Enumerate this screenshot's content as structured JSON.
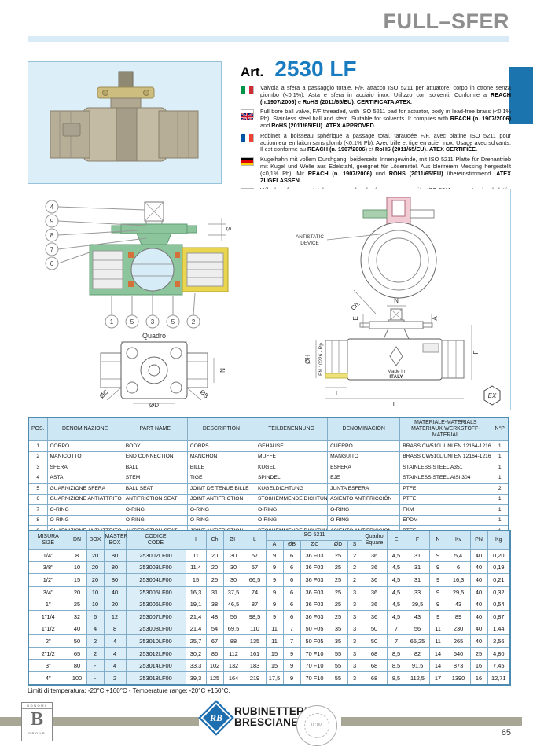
{
  "header": {
    "title": "FULL–SFER"
  },
  "product": {
    "art_label": "Art.",
    "art_number": "2530 LF",
    "descriptions": [
      {
        "lang": "italian-flag",
        "text": "Valvola a sfera a passaggio totale, F/F, attacco ISO 5211 per attuatore, corpo in ottone senza piombo (<0,1%). Asta e sfera in acciaio inox. Utilizzo con solventi. Conforme a REACH (n.1907/2006) e RoHS (2011/65/EU). CERTIFICATA ATEX."
      },
      {
        "lang": "uk-flag",
        "text": "Full bore ball valve, F/F threaded, with ISO 5211 pad for actuator, body in lead-free brass (<0,1% Pb). Stainless steel ball and stem. Suitable for solvents. It complies with REACH (n. 1907/2006) and RoHS (2011/65/EU). ATEX APPROVED."
      },
      {
        "lang": "french-flag",
        "text": "Robinet à boisseau sphérique à passage total, taraudée F/F, avec platine ISO 5211 pour actionneur en laiton sans plomb (<0,1% Pb). Avec bille et tige en acier inox. Usage avec solvants. Il est conforme au REACH (n. 1907/2006) et RoHS (2011/65/EU). ATEX CERTIFIÉE."
      },
      {
        "lang": "german-flag",
        "text": "Kugelhahn mit vollem Durchgang, beiderseits Innengewinde, mit ISO 5211 Platte für Drehantrieb mit Kugel und Welle aus Edelstahl, geeignet für Lösemittel. Aus bleifreiem Messing hergestellt (<0,1% Pb). Mit REACH (n. 1907/2006) und ROHS (2011/65/EU) übereinstimmend. ATEX ZUGELASSEN."
      },
      {
        "lang": "spanish-flag",
        "text": "Válvula esfera paso total con roscas hembra/hembra y conexión ISO 5211 para actuador de latón sin plomo (<0,1% Pb). Con eje y esfera en acero inoxidable. Utilización con solventes. Conforme a REACH (n. 1907/2006) e RoHS (2011/65/EU). CERTIFICADA ATEX."
      }
    ]
  },
  "bold_phrases": [
    "REACH (n.1907/2006)",
    "REACH (n. 1907/2006)",
    "RoHS (2011/65/EU)",
    "ROHS (2011/65/EU)",
    "CERTIFICATA ATEX.",
    "ATEX APPROVED.",
    "ATEX CERTIFIÉE.",
    "ATEX ZUGELASSEN.",
    "CERTIFICADA ATEX."
  ],
  "diagram": {
    "callouts_left": [
      "4",
      "9",
      "8",
      "7",
      "6"
    ],
    "callouts_bottom": [
      "1",
      "5",
      "3",
      "5",
      "2"
    ],
    "quadro_label": "Quadro",
    "antistatic_1": "ANTISTATIC",
    "antistatic_2": "DEVICE",
    "made_in_1": "Made in",
    "made_in_2": "ITALY",
    "ex_label": "EX",
    "dims": {
      "s": "S",
      "n": "N",
      "oc": "ØC",
      "od": "ØD",
      "ob": "ØB",
      "ch": "Ch.",
      "e": "E",
      "a": "A",
      "f": "F",
      "oh": "ØH",
      "en": "EN 10226 - Rp",
      "i": "I",
      "l": "L"
    }
  },
  "parts_table": {
    "headers": {
      "pos": "POS.",
      "denominazione": "DENOMINAZIONE",
      "part_name": "PART NAME",
      "description": "DESCRIPTION",
      "teilbenennung": "TEILBENENNUNG",
      "denominacion": "DENOMINACIÓN",
      "materiale_line1": "MATERIALE-MATERIALS",
      "materiale_line2": "MATERIAUX-WERKSTOFF-MATERIAL",
      "np": "N°P"
    },
    "rows": [
      [
        "1",
        "CORPO",
        "BODY",
        "CORPS",
        "GEHÄUSE",
        "CUERPO",
        "BRASS CW510L UNI EN 12164-12165",
        "1"
      ],
      [
        "2",
        "MANICOTTO",
        "END CONNECTION",
        "MANCHON",
        "MUFFE",
        "MANGUITO",
        "BRASS CW510L UNI EN 12164-12165",
        "1"
      ],
      [
        "3",
        "SFERA",
        "BALL",
        "BILLE",
        "KUGEL",
        "ESFERA",
        "STAINLESS STEEL A351",
        "1"
      ],
      [
        "4",
        "ASTA",
        "STEM",
        "TIGE",
        "SPINDEL",
        "EJE",
        "STAINLESS STEEL AISI 304",
        "1"
      ],
      [
        "5",
        "GUARNIZIONE SFERA",
        "BALL SEAT",
        "JOINT DE TENUE BILLE",
        "KUGELDICHTUNG",
        "JUNTA ESFERA",
        "PTFE",
        "2"
      ],
      [
        "6",
        "GUARNIZIONE ANTIATTRITO",
        "ANTIFRICTION SEAT",
        "JOINT ANTIFRICTION",
        "STOßHEMMENDE DICHTUNG",
        "ASIENTO ANTIFRICCIÓN",
        "PTFE",
        "1"
      ],
      [
        "7",
        "O-RING",
        "O-RING",
        "O-RING",
        "O-RING",
        "O-RING",
        "FKM",
        "1"
      ],
      [
        "8",
        "O-RING",
        "O-RING",
        "O-RING",
        "O-RING",
        "O-RING",
        "EPDM",
        "1"
      ],
      [
        "9",
        "GUARNIZIONE ANTIATTRITO",
        "ANTIFRICTION SEAT",
        "JOINT ANTIFRICTION",
        "STOßHEMMENDE DICHTUNG",
        "ASIENTO ANTIFRICCIÓN",
        "PTFE",
        "1"
      ]
    ]
  },
  "size_table": {
    "iso_group": "ISO 5211",
    "headers": {
      "misura_1": "MISURA",
      "misura_2": "SIZE",
      "dn": "DN",
      "box": "BOX",
      "master_1": "MASTER",
      "master_2": "BOX",
      "codice_1": "CODICE",
      "codice_2": "CODE",
      "i": "I",
      "ch": "Ch",
      "oh": "ØH",
      "l": "L",
      "a": "A",
      "ob": "ØB",
      "oc": "ØC",
      "od": "ØD",
      "s": "S",
      "quadro_1": "Quadro",
      "quadro_2": "Square",
      "e": "E",
      "f": "F",
      "n": "N",
      "kv": "Kv",
      "pn": "PN",
      "kg": "Kg"
    },
    "rows": [
      [
        "1/4\"",
        "8",
        "20",
        "80",
        "253002LF00",
        "11",
        "20",
        "30",
        "57",
        "9",
        "6",
        "36 F03",
        "25",
        "2",
        "36",
        "4,5",
        "31",
        "9",
        "5,4",
        "40",
        "0,20"
      ],
      [
        "3/8\"",
        "10",
        "20",
        "80",
        "253003LF00",
        "11,4",
        "20",
        "30",
        "57",
        "9",
        "6",
        "36 F03",
        "25",
        "2",
        "36",
        "4,5",
        "31",
        "9",
        "6",
        "40",
        "0,19"
      ],
      [
        "1/2\"",
        "15",
        "20",
        "80",
        "253004LF00",
        "15",
        "25",
        "30",
        "66,5",
        "9",
        "6",
        "36 F03",
        "25",
        "2",
        "36",
        "4,5",
        "31",
        "9",
        "16,3",
        "40",
        "0,21"
      ],
      [
        "3/4\"",
        "20",
        "10",
        "40",
        "253005LF00",
        "16,3",
        "31",
        "37,5",
        "74",
        "9",
        "6",
        "36 F03",
        "25",
        "3",
        "36",
        "4,5",
        "33",
        "9",
        "29,5",
        "40",
        "0,32"
      ],
      [
        "1\"",
        "25",
        "10",
        "20",
        "253006LF00",
        "19,1",
        "38",
        "46,5",
        "87",
        "9",
        "6",
        "36 F03",
        "25",
        "3",
        "36",
        "4,5",
        "39,5",
        "9",
        "43",
        "40",
        "0,54"
      ],
      [
        "1\"1/4",
        "32",
        "6",
        "12",
        "253007LF00",
        "21,4",
        "48",
        "56",
        "98,5",
        "9",
        "6",
        "36 F03",
        "25",
        "3",
        "36",
        "4,5",
        "43",
        "9",
        "89",
        "40",
        "0,87"
      ],
      [
        "1\"1/2",
        "40",
        "4",
        "8",
        "253008LF00",
        "21,4",
        "54",
        "69,5",
        "110",
        "11",
        "7",
        "50 F05",
        "35",
        "3",
        "50",
        "7",
        "56",
        "11",
        "230",
        "40",
        "1,44"
      ],
      [
        "2\"",
        "50",
        "2",
        "4",
        "253010LF00",
        "25,7",
        "67",
        "88",
        "135",
        "11",
        "7",
        "50 F05",
        "35",
        "3",
        "50",
        "7",
        "65,25",
        "11",
        "265",
        "40",
        "2,56"
      ],
      [
        "2\"1/2",
        "65",
        "2",
        "4",
        "253012LF00",
        "30,2",
        "86",
        "112",
        "161",
        "15",
        "9",
        "70 F10",
        "55",
        "3",
        "68",
        "8,5",
        "82",
        "14",
        "540",
        "25",
        "4,80"
      ],
      [
        "3\"",
        "80",
        "-",
        "4",
        "253014LF00",
        "33,3",
        "102",
        "132",
        "183",
        "15",
        "9",
        "70 F10",
        "55",
        "3",
        "68",
        "8,5",
        "91,5",
        "14",
        "873",
        "16",
        "7,45"
      ],
      [
        "4\"",
        "100",
        "-",
        "2",
        "253018LF00",
        "39,3",
        "125",
        "164",
        "219",
        "17,5",
        "9",
        "70 F10",
        "55",
        "3",
        "68",
        "8,5",
        "112,5",
        "17",
        "1390",
        "16",
        "12,71"
      ]
    ]
  },
  "notes": {
    "temperature": "Limiti di temperatura: -20°C +160°C - Temperature range: -20°C +160°C."
  },
  "footer": {
    "bonomi_top": "BONOMI",
    "bonomi_letter": "B",
    "bonomi_bottom": "GROUP",
    "rb_monogram": "RB",
    "brand_line1": "RUBINETTERIE",
    "brand_line2": "BRESCIANE",
    "seal_center": "ICIM",
    "page_number": "65"
  },
  "colors": {
    "accent_blue": "#1b74ae",
    "light_blue_band": "#d9ebf6",
    "table_header": "#cde7f4",
    "cell_shade": "#dbeef8",
    "footer_bar": "#a8a695",
    "header_gray": "#8f8f8f"
  }
}
